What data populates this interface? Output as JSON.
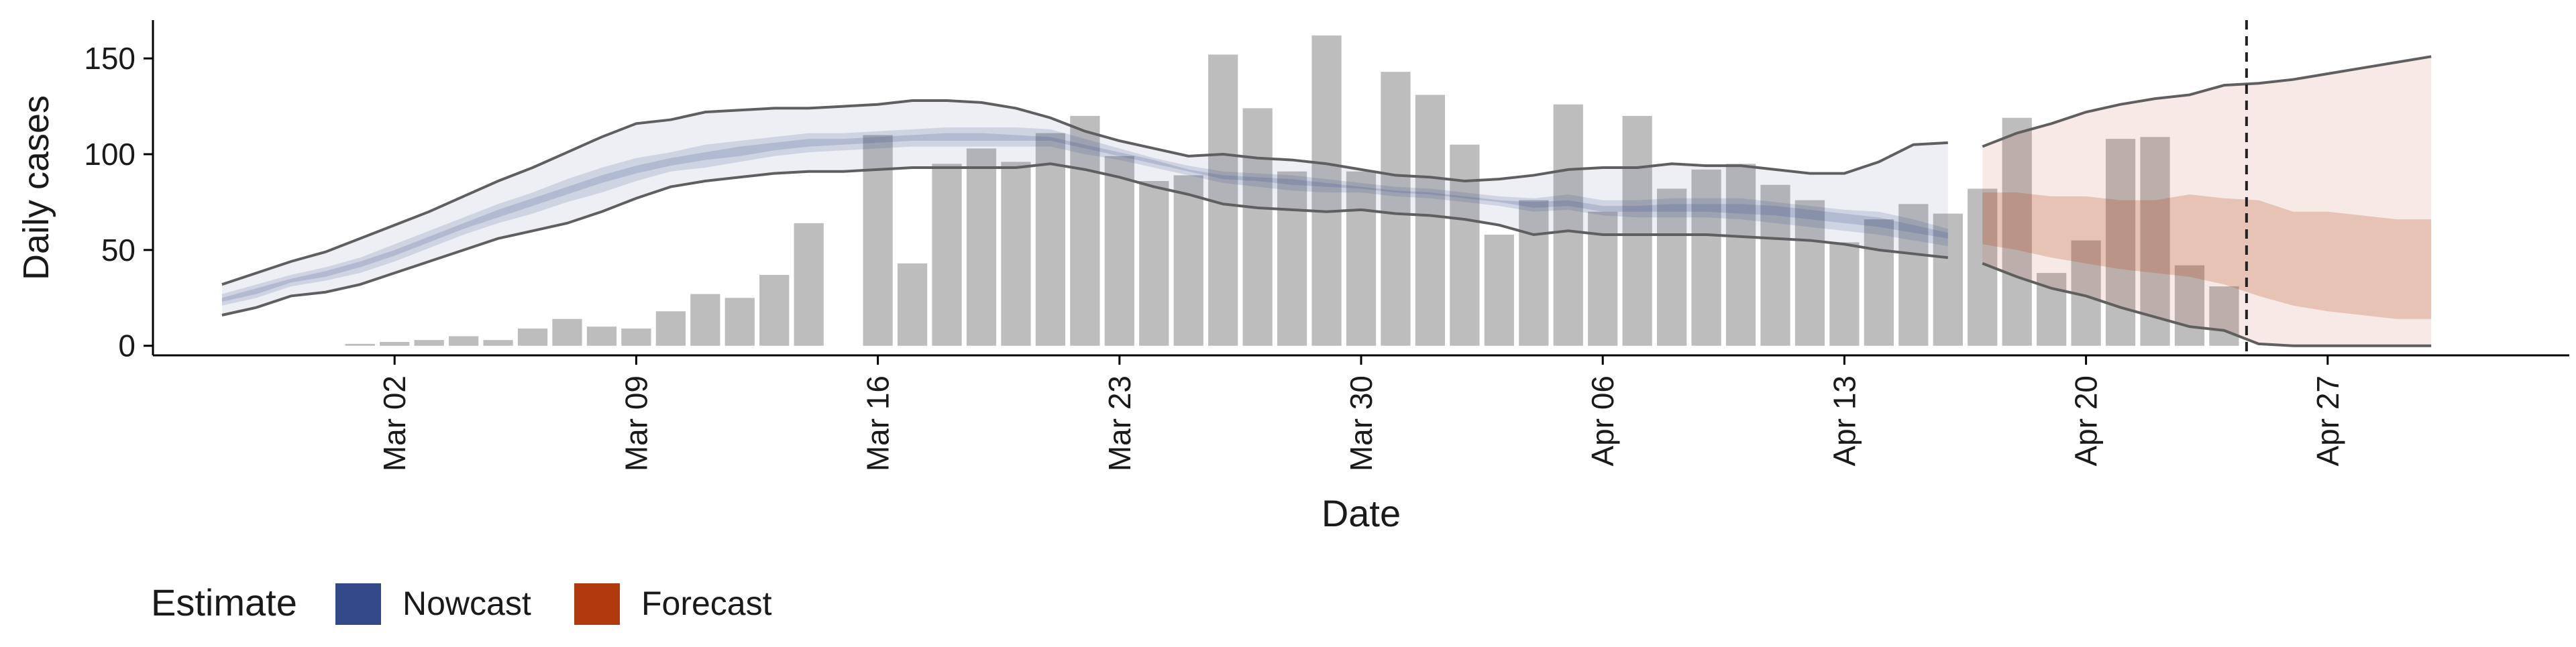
{
  "chart_data": {
    "type": "bar",
    "xlabel": "Date",
    "ylabel": "Daily cases",
    "ylim": [
      -5,
      170
    ],
    "y_ticks": [
      0,
      50,
      100,
      150
    ],
    "x_ticks": [
      {
        "date": "2020-03-02",
        "label": "Mar 02"
      },
      {
        "date": "2020-03-09",
        "label": "Mar 09"
      },
      {
        "date": "2020-03-16",
        "label": "Mar 16"
      },
      {
        "date": "2020-03-23",
        "label": "Mar 23"
      },
      {
        "date": "2020-03-30",
        "label": "Mar 30"
      },
      {
        "date": "2020-04-06",
        "label": "Apr 06"
      },
      {
        "date": "2020-04-13",
        "label": "Apr 13"
      },
      {
        "date": "2020-04-20",
        "label": "Apr 20"
      },
      {
        "date": "2020-04-27",
        "label": "Apr 27"
      }
    ],
    "xlim": [
      "2020-02-24",
      "2020-05-04"
    ],
    "grid": false,
    "cutoff_date": "2020-04-25",
    "bars": {
      "color": "#bdbdbd",
      "dates": [
        "2020-03-01",
        "2020-03-02",
        "2020-03-03",
        "2020-03-04",
        "2020-03-05",
        "2020-03-06",
        "2020-03-07",
        "2020-03-08",
        "2020-03-09",
        "2020-03-10",
        "2020-03-11",
        "2020-03-12",
        "2020-03-13",
        "2020-03-14",
        "2020-03-15",
        "2020-03-16",
        "2020-03-17",
        "2020-03-18",
        "2020-03-19",
        "2020-03-20",
        "2020-03-21",
        "2020-03-22",
        "2020-03-23",
        "2020-03-24",
        "2020-03-25",
        "2020-03-26",
        "2020-03-27",
        "2020-03-28",
        "2020-03-29",
        "2020-03-30",
        "2020-03-31",
        "2020-04-01",
        "2020-04-02",
        "2020-04-03",
        "2020-04-04",
        "2020-04-05",
        "2020-04-06",
        "2020-04-07",
        "2020-04-08",
        "2020-04-09",
        "2020-04-10",
        "2020-04-11",
        "2020-04-12",
        "2020-04-13",
        "2020-04-14",
        "2020-04-15",
        "2020-04-16",
        "2020-04-17",
        "2020-04-18",
        "2020-04-19",
        "2020-04-20",
        "2020-04-21",
        "2020-04-22",
        "2020-04-23",
        "2020-04-24",
        "2020-04-25"
      ],
      "values": [
        1,
        2,
        3,
        5,
        3,
        9,
        14,
        10,
        9,
        18,
        27,
        25,
        37,
        64,
        0,
        110,
        43,
        95,
        103,
        96,
        111,
        120,
        99,
        86,
        89,
        152,
        124,
        91,
        162,
        91,
        143,
        131,
        105,
        58,
        76,
        126,
        70,
        120,
        82,
        92,
        95,
        84,
        76,
        54,
        66,
        74,
        69,
        82,
        119,
        38,
        55,
        108,
        109,
        42,
        31,
        0
      ]
    },
    "series": [
      {
        "name": "Nowcast",
        "color": "#34498a",
        "dates": [
          "2020-02-26",
          "2020-02-27",
          "2020-02-28",
          "2020-02-29",
          "2020-03-01",
          "2020-03-02",
          "2020-03-03",
          "2020-03-04",
          "2020-03-05",
          "2020-03-06",
          "2020-03-07",
          "2020-03-08",
          "2020-03-09",
          "2020-03-10",
          "2020-03-11",
          "2020-03-12",
          "2020-03-13",
          "2020-03-14",
          "2020-03-15",
          "2020-03-16",
          "2020-03-17",
          "2020-03-18",
          "2020-03-19",
          "2020-03-20",
          "2020-03-21",
          "2020-03-22",
          "2020-03-23",
          "2020-03-24",
          "2020-03-25",
          "2020-03-26",
          "2020-03-27",
          "2020-03-28",
          "2020-03-29",
          "2020-03-30",
          "2020-03-31",
          "2020-04-01",
          "2020-04-02",
          "2020-04-03",
          "2020-04-04",
          "2020-04-05",
          "2020-04-06",
          "2020-04-07",
          "2020-04-08",
          "2020-04-09",
          "2020-04-10",
          "2020-04-11",
          "2020-04-12",
          "2020-04-13",
          "2020-04-14",
          "2020-04-15",
          "2020-04-16"
        ],
        "lower_90": [
          16,
          20,
          26,
          28,
          32,
          38,
          44,
          50,
          56,
          60,
          64,
          70,
          77,
          83,
          86,
          88,
          90,
          91,
          91,
          92,
          93,
          93,
          93,
          93,
          95,
          92,
          88,
          83,
          79,
          74,
          72,
          71,
          70,
          71,
          69,
          68,
          66,
          63,
          58,
          60,
          58,
          58,
          58,
          58,
          57,
          56,
          55,
          53,
          50,
          48,
          46
        ],
        "upper_90": [
          32,
          38,
          44,
          49,
          56,
          63,
          70,
          78,
          86,
          93,
          101,
          109,
          116,
          118,
          122,
          123,
          124,
          124,
          125,
          126,
          128,
          128,
          127,
          124,
          119,
          112,
          107,
          103,
          99,
          100,
          98,
          97,
          95,
          92,
          89,
          88,
          86,
          87,
          89,
          92,
          93,
          93,
          95,
          94,
          94,
          92,
          90,
          90,
          96,
          105,
          106
        ],
        "lower_50": [
          21,
          25,
          31,
          34,
          38,
          44,
          51,
          58,
          64,
          69,
          75,
          80,
          86,
          91,
          93,
          96,
          99,
          101,
          102,
          103,
          104,
          104,
          104,
          104,
          104,
          100,
          97,
          93,
          89,
          85,
          83,
          81,
          80,
          80,
          78,
          77,
          75,
          73,
          70,
          71,
          68,
          67,
          67,
          67,
          66,
          64,
          62,
          60,
          58,
          55,
          52
        ],
        "upper_50": [
          27,
          32,
          37,
          41,
          46,
          53,
          60,
          67,
          74,
          80,
          87,
          93,
          98,
          101,
          105,
          107,
          109,
          111,
          111,
          112,
          113,
          114,
          114,
          114,
          113,
          108,
          103,
          98,
          94,
          91,
          90,
          89,
          87,
          85,
          83,
          82,
          80,
          78,
          77,
          79,
          76,
          76,
          77,
          77,
          77,
          75,
          73,
          71,
          70,
          66,
          61
        ],
        "lower_20": [
          23,
          27,
          33,
          36,
          41,
          47,
          54,
          61,
          67,
          73,
          79,
          85,
          90,
          94,
          97,
          99,
          102,
          104,
          105,
          106,
          107,
          107,
          107,
          107,
          107,
          103,
          99,
          95,
          91,
          87,
          86,
          84,
          83,
          82,
          80,
          79,
          77,
          75,
          72,
          73,
          70,
          70,
          70,
          70,
          69,
          68,
          66,
          64,
          62,
          59,
          56
        ],
        "upper_20": [
          25,
          30,
          35,
          39,
          44,
          50,
          57,
          64,
          71,
          77,
          83,
          89,
          94,
          98,
          101,
          104,
          106,
          108,
          108,
          109,
          110,
          111,
          111,
          110,
          109,
          105,
          101,
          97,
          92,
          89,
          88,
          87,
          85,
          83,
          81,
          80,
          78,
          76,
          75,
          76,
          73,
          73,
          74,
          74,
          74,
          73,
          71,
          69,
          67,
          63,
          59
        ]
      },
      {
        "name": "Forecast",
        "color": "#b2390e",
        "dates": [
          "2020-04-17",
          "2020-04-18",
          "2020-04-19",
          "2020-04-20",
          "2020-04-21",
          "2020-04-22",
          "2020-04-23",
          "2020-04-24",
          "2020-04-25",
          "2020-04-26",
          "2020-04-27",
          "2020-04-28",
          "2020-04-29",
          "2020-04-30"
        ],
        "lower_90": [
          43,
          36,
          30,
          26,
          20,
          15,
          10,
          8,
          1,
          0,
          0,
          0,
          0,
          0
        ],
        "upper_90": [
          104,
          111,
          116,
          122,
          126,
          129,
          131,
          136,
          137,
          139,
          142,
          145,
          148,
          151
        ],
        "lower_50": [
          53,
          50,
          46,
          43,
          40,
          38,
          36,
          32,
          26,
          21,
          18,
          16,
          14,
          14
        ],
        "upper_50": [
          80,
          80,
          78,
          78,
          76,
          76,
          79,
          77,
          76,
          70,
          70,
          68,
          66,
          66
        ]
      }
    ],
    "legend": {
      "title": "Estimate",
      "position": "bottom-left",
      "items": [
        {
          "label": "Nowcast",
          "color": "#34498a"
        },
        {
          "label": "Forecast",
          "color": "#b2390e"
        }
      ]
    }
  }
}
